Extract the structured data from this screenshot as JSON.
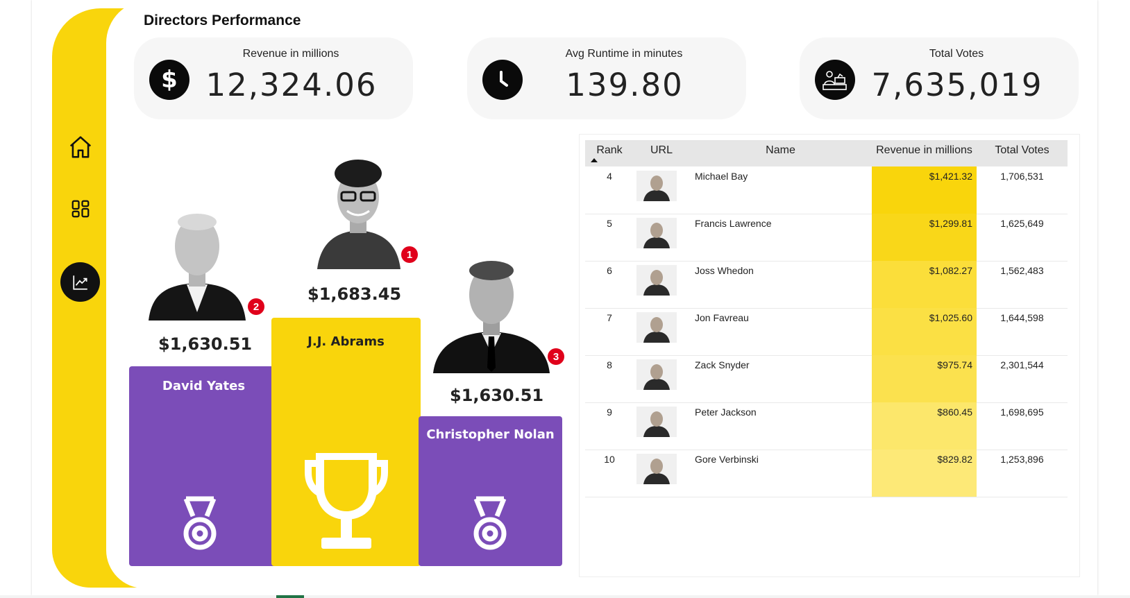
{
  "page": {
    "title": "Directors Performance"
  },
  "colors": {
    "yellow": "#f9d50c",
    "purple": "#7b4db8",
    "black": "#0a0a0a",
    "rank_badge": "#e0001b"
  },
  "nav": [
    {
      "name": "home",
      "icon": "home-icon"
    },
    {
      "name": "grid",
      "icon": "grid-icon"
    },
    {
      "name": "analytics",
      "icon": "line-chart-icon",
      "active": true
    }
  ],
  "kpis": [
    {
      "label": "Revenue in millions",
      "value": "12,324.06",
      "icon": "dollar-icon"
    },
    {
      "label": "Avg Runtime in minutes",
      "value": "139.80",
      "icon": "clock-icon"
    },
    {
      "label": "Total Votes",
      "value": "7,635,019",
      "icon": "voters-icon"
    }
  ],
  "podium": {
    "first": {
      "name": "J.J. Abrams",
      "amount": "$1,683.45",
      "rank": "1"
    },
    "second": {
      "name": "David Yates",
      "amount": "$1,630.51",
      "rank": "2"
    },
    "third": {
      "name": "Christopher Nolan",
      "amount": "$1,630.51",
      "rank": "3"
    }
  },
  "table": {
    "columns": [
      "Rank",
      "URL",
      "Name",
      "Revenue in millions",
      "Total Votes"
    ],
    "sort_column": "Rank",
    "rows": [
      {
        "rank": "4",
        "name": "Michael Bay",
        "revenue": "$1,421.32",
        "votes": "1,706,531",
        "heat": 1.0
      },
      {
        "rank": "5",
        "name": "Francis Lawrence",
        "revenue": "$1,299.81",
        "votes": "1,625,649",
        "heat": 0.92
      },
      {
        "rank": "6",
        "name": "Joss Whedon",
        "revenue": "$1,082.27",
        "votes": "1,562,483",
        "heat": 0.72
      },
      {
        "rank": "7",
        "name": "Jon Favreau",
        "revenue": "$1,025.60",
        "votes": "1,644,598",
        "heat": 0.66
      },
      {
        "rank": "8",
        "name": "Zack Snyder",
        "revenue": "$975.74",
        "votes": "2,301,544",
        "heat": 0.6
      },
      {
        "rank": "9",
        "name": "Peter Jackson",
        "revenue": "$860.45",
        "votes": "1,698,695",
        "heat": 0.42
      },
      {
        "rank": "10",
        "name": "Gore Verbinski",
        "revenue": "$829.82",
        "votes": "1,253,896",
        "heat": 0.35
      }
    ]
  }
}
